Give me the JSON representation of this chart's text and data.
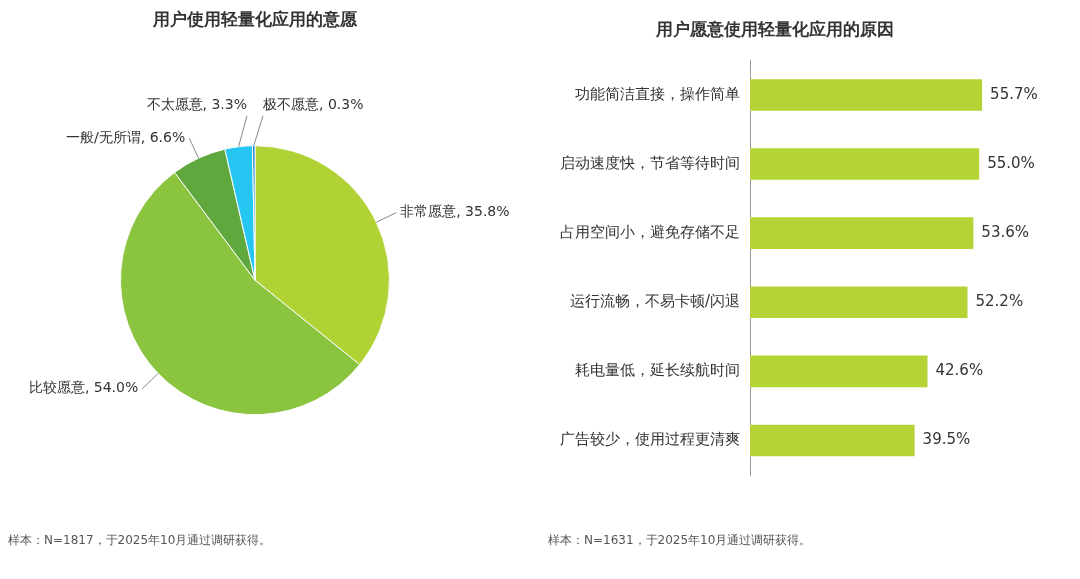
{
  "chart_data": [
    {
      "type": "pie",
      "title": "用户使用轻量化应用的意愿",
      "categories": [
        "非常愿意",
        "比较愿意",
        "一般/无所谓",
        "不太愿意",
        "极不愿意"
      ],
      "values": [
        35.8,
        54.0,
        6.6,
        3.3,
        0.3
      ],
      "value_labels": [
        "35.8%",
        "54.0%",
        "6.6%",
        "3.3%",
        "0.3%"
      ],
      "colors": [
        "#b0d235",
        "#8bc43f",
        "#5fa83d",
        "#26c6f2",
        "#1a7fc4"
      ],
      "legend": false,
      "annotations": [
        "样本：N=1817，于2025年10月通过调研获得。"
      ]
    },
    {
      "type": "bar",
      "orientation": "horizontal",
      "title": "用户愿意使用轻量化应用的原因",
      "categories": [
        "功能简洁直接，操作简单",
        "启动速度快，节省等待时间",
        "占用空间小，避免存储不足",
        "运行流畅，不易卡顿/闪退",
        "耗电量低，延长续航时间",
        "广告较少，使用过程更清爽"
      ],
      "values": [
        55.7,
        55.0,
        53.6,
        52.2,
        42.6,
        39.5
      ],
      "value_labels": [
        "55.7%",
        "55.0%",
        "53.6%",
        "52.2%",
        "42.6%",
        "39.5%"
      ],
      "color": "#b4d334",
      "legend": false,
      "annotations": [
        "样本：N=1631，于2025年10月通过调研获得。"
      ]
    }
  ]
}
